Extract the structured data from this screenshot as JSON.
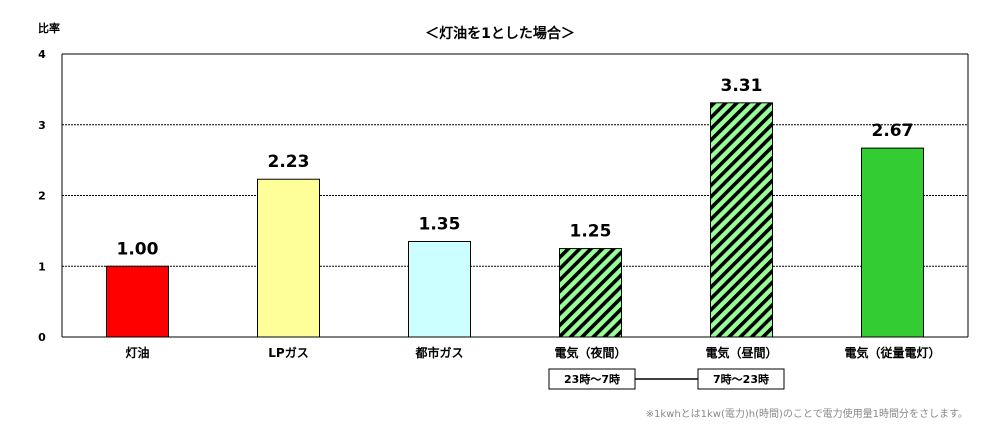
{
  "chart_data": {
    "type": "bar",
    "title": "＜灯油を1とした場合＞",
    "ylabel": "比率",
    "xlabel": "",
    "ylim": [
      0,
      4
    ],
    "yticks": [
      0,
      1,
      2,
      3,
      4
    ],
    "grid": true,
    "categories": [
      "灯油",
      "LPガス",
      "都市ガス",
      "電気（夜間）",
      "電気（昼間）",
      "電気（従量電灯）"
    ],
    "values": [
      1.0,
      2.23,
      1.35,
      1.25,
      3.31,
      2.67
    ],
    "value_labels": [
      "1.00",
      "2.23",
      "1.35",
      "1.25",
      "3.31",
      "2.67"
    ],
    "bar_colors": [
      "#ff0000",
      "#ffff99",
      "#ccffff",
      "#99ff99",
      "#99ff99",
      "#33cc33"
    ],
    "bar_hatched": [
      false,
      false,
      false,
      true,
      true,
      false
    ],
    "hatch_color": "#000000"
  },
  "annotations": {
    "night_hours": "23時～7時",
    "day_hours": "7時～23時"
  },
  "footnote": "※1kwhとは1kw(電力)h(時間)のことで電力使用量1時間分をさします。"
}
